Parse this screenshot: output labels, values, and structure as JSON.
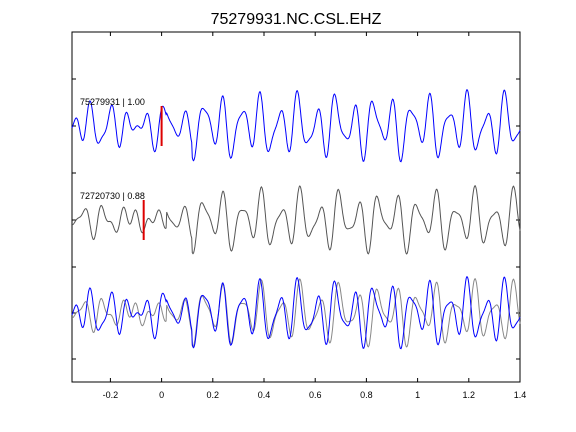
{
  "title": "75279931.NC.CSL.EHZ",
  "chart_data": {
    "type": "line",
    "title": "75279931.NC.CSL.EHZ",
    "xlabel": "",
    "ylabel": "",
    "xlim": [
      -0.35,
      1.4
    ],
    "x_ticks": [
      -0.2,
      0,
      0.2,
      0.4,
      0.6,
      0.8,
      1,
      1.2,
      1.4
    ],
    "x_tick_labels": [
      "-0.2",
      "0",
      "0.2",
      "0.4",
      "0.6",
      "0.8",
      "1",
      "1.2",
      "1.4"
    ],
    "y_ticks_shown": true,
    "grid": false,
    "colors": {
      "primary": "#0000ff",
      "secondary": "#555555",
      "pick": "#dd0000",
      "axis": "#000000"
    },
    "traces": [
      {
        "label": "75279931 | 1.00",
        "color": "#0000ff",
        "pick_time": 0.0,
        "overlay": false
      },
      {
        "label": "72720730 | 0.88",
        "color": "#555555",
        "pick_time": -0.07,
        "overlay": false
      },
      {
        "label": "",
        "overlay": true,
        "components": [
          "75279931",
          "72720730"
        ]
      }
    ]
  }
}
